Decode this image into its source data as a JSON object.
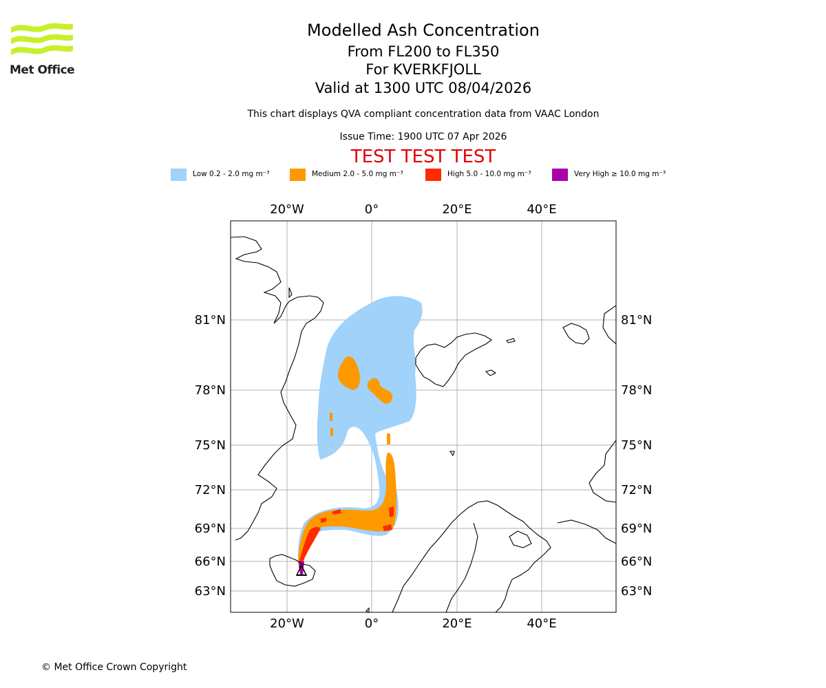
{
  "header": {
    "title": "Modelled Ash Concentration",
    "flight_levels": "From FL200 to FL350",
    "volcano": "For KVERKFJOLL",
    "validity": "Valid at 1300 UTC 08/04/2026",
    "description": "This chart displays QVA compliant concentration data from VAAC London",
    "issue_time": "Issue Time: 1900 UTC 07 Apr 2026",
    "test_banner": "TEST TEST TEST"
  },
  "logo": {
    "text": "Met Office"
  },
  "legend": [
    {
      "label": "Low 0.2 - 2.0 mg m⁻³",
      "color": "#a0d2fa"
    },
    {
      "label": "Medium 2.0 - 5.0 mg m⁻³",
      "color": "#ff9900"
    },
    {
      "label": "High 5.0 - 10.0 mg m⁻³",
      "color": "#ff2a00"
    },
    {
      "label": "Very High ≥ 10.0 mg m⁻³",
      "color": "#aa00aa"
    }
  ],
  "axes": {
    "longitude_labels": [
      "20°W",
      "0°",
      "20°E",
      "40°E"
    ],
    "latitude_labels": [
      "81°N",
      "78°N",
      "75°N",
      "72°N",
      "69°N",
      "66°N",
      "63°N"
    ]
  },
  "map_colors": {
    "low": "#a0d2fa",
    "medium": "#ff9900",
    "high": "#ff2a00",
    "very_high": "#aa00aa",
    "grid": "#b0b0b0",
    "coast": "#000000"
  },
  "footer": {
    "copyright": "© Met Office Crown Copyright"
  }
}
